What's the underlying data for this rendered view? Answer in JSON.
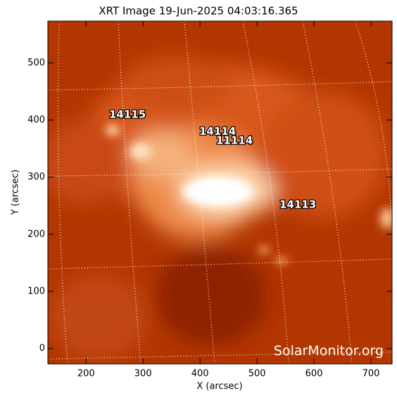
{
  "chart_data": {
    "type": "image",
    "title": "XRT Image 19-Jun-2025 04:03:16.365",
    "xlabel": "X (arcsec)",
    "ylabel": "Y (arcsec)",
    "xlim": [
      133,
      737
    ],
    "ylim": [
      -27,
      573
    ],
    "xticks": [
      200,
      300,
      400,
      500,
      600,
      700
    ],
    "yticks": [
      0,
      100,
      200,
      300,
      400,
      500
    ],
    "annotations": [
      "14115",
      "14114",
      "11114",
      "14113"
    ],
    "watermark": "SolarMonitor.org"
  }
}
